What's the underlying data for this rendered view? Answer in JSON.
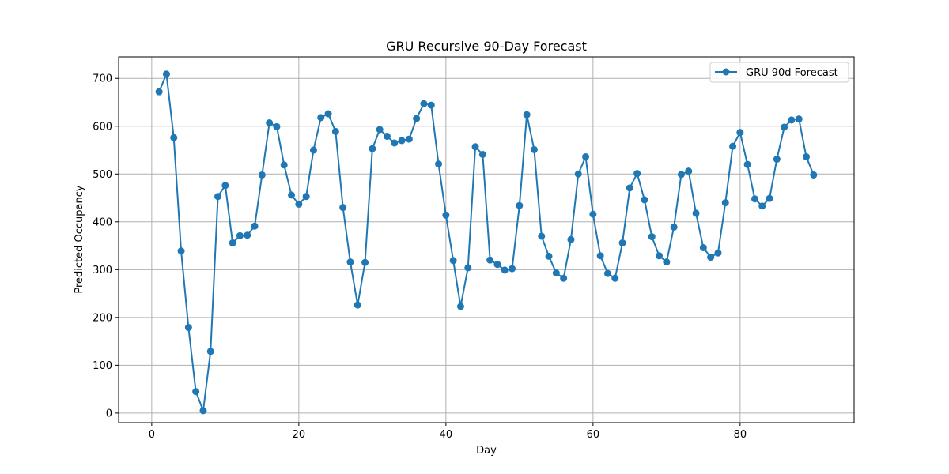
{
  "chart_data": {
    "type": "line",
    "title": "GRU Recursive 90-Day Forecast",
    "xlabel": "Day",
    "ylabel": "Predicted Occupancy",
    "xlim": [
      -4.5,
      95.5
    ],
    "ylim": [
      -20,
      745
    ],
    "xticks": [
      0,
      20,
      40,
      60,
      80
    ],
    "yticks": [
      0,
      100,
      200,
      300,
      400,
      500,
      600,
      700
    ],
    "grid": true,
    "legend_position": "top-right",
    "series": [
      {
        "name": "GRU 90d Forecast",
        "color": "#1f77b4",
        "marker": "circle",
        "x": [
          1,
          2,
          3,
          4,
          5,
          6,
          7,
          8,
          9,
          10,
          11,
          12,
          13,
          14,
          15,
          16,
          17,
          18,
          19,
          20,
          21,
          22,
          23,
          24,
          25,
          26,
          27,
          28,
          29,
          30,
          31,
          32,
          33,
          34,
          35,
          36,
          37,
          38,
          39,
          40,
          41,
          42,
          43,
          44,
          45,
          46,
          47,
          48,
          49,
          50,
          51,
          52,
          53,
          54,
          55,
          56,
          57,
          58,
          59,
          60,
          61,
          62,
          63,
          64,
          65,
          66,
          67,
          68,
          69,
          70,
          71,
          72,
          73,
          74,
          75,
          76,
          77,
          78,
          79,
          80,
          81,
          82,
          83,
          84,
          85,
          86,
          87,
          88,
          89,
          90
        ],
        "values": [
          672,
          709,
          576,
          339,
          179,
          45,
          5,
          129,
          453,
          476,
          356,
          371,
          372,
          391,
          498,
          607,
          599,
          519,
          456,
          437,
          453,
          550,
          618,
          626,
          589,
          430,
          316,
          226,
          315,
          553,
          593,
          579,
          565,
          570,
          573,
          616,
          647,
          644,
          521,
          414,
          319,
          223,
          304,
          557,
          541,
          320,
          311,
          299,
          302,
          434,
          624,
          551,
          370,
          328,
          293,
          282,
          363,
          500,
          536,
          416,
          329,
          292,
          282,
          356,
          471,
          501,
          446,
          369,
          329,
          316,
          389,
          499,
          506,
          418,
          346,
          326,
          335,
          440,
          558,
          587,
          520,
          448,
          433,
          449,
          531,
          598,
          613,
          615,
          536,
          498
        ]
      }
    ]
  }
}
